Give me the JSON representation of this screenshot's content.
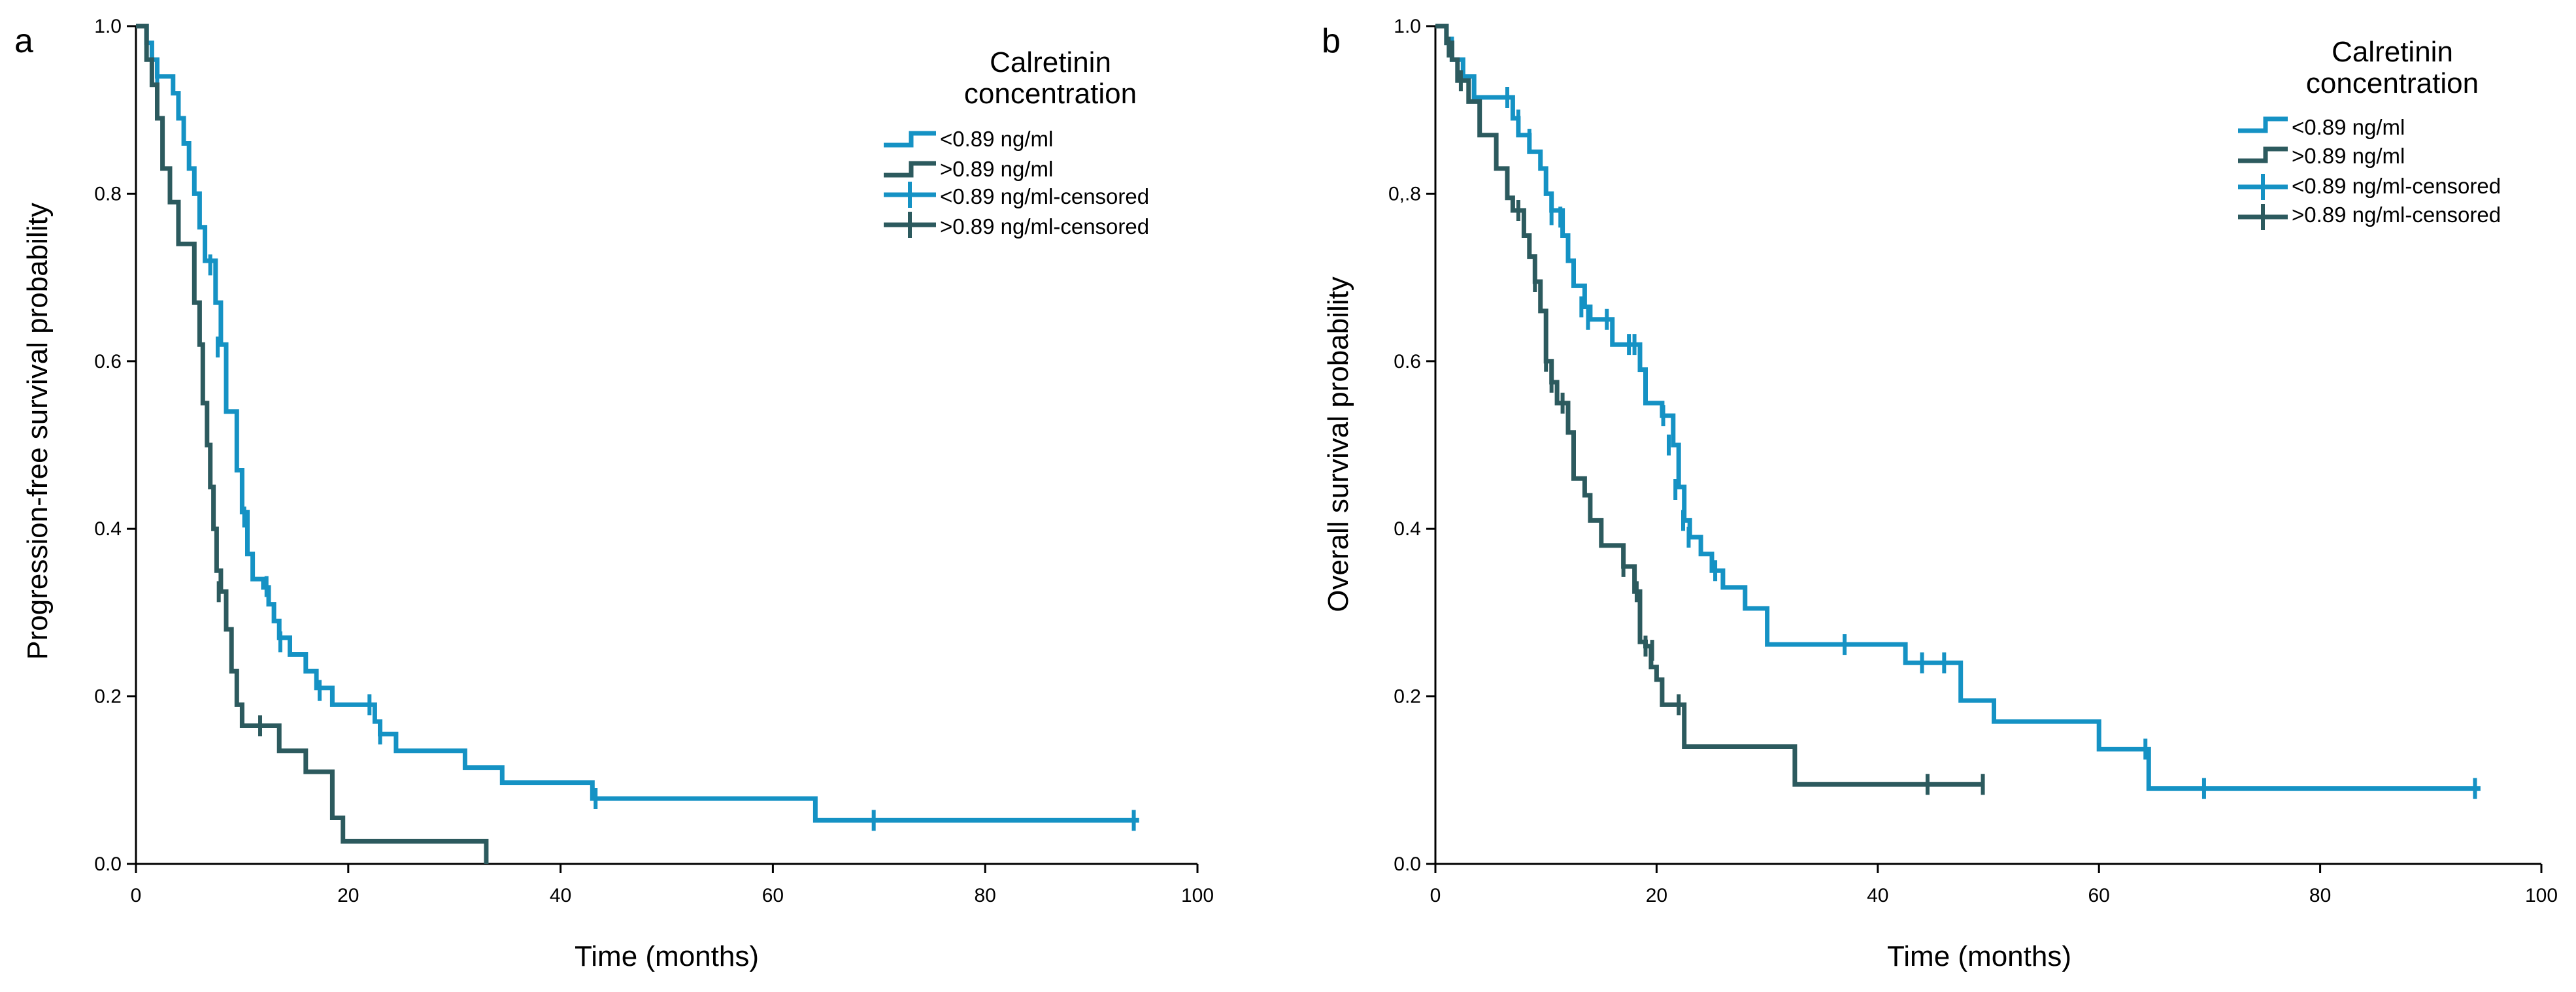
{
  "colors": {
    "low": "#1592c4",
    "high": "#2c5a5e"
  },
  "chart_data": [
    {
      "type": "line",
      "panel_label": "a",
      "xlabel": "Time (months)",
      "ylabel": "Progression-free survival probability",
      "xlim": [
        0,
        100
      ],
      "ylim": [
        0,
        1
      ],
      "xticks": [
        "0",
        "20",
        "40",
        "60",
        "80",
        "100"
      ],
      "yticks": [
        "0.0",
        "0.2",
        "0.4",
        "0.6",
        "0.8",
        "1.0"
      ],
      "legend": {
        "title_line1": "Calretinin",
        "title_line2": "concentration",
        "entries": [
          "<0.89 ng/ml",
          ">0.89 ng/ml",
          "<0.89 ng/ml-censored",
          ">0.89 ng/ml-censored"
        ],
        "position": "top-right"
      },
      "series": [
        {
          "name": "<0.89 ng/ml",
          "steps": [
            [
              0,
              1.0
            ],
            [
              1.0,
              0.98
            ],
            [
              1.5,
              0.96
            ],
            [
              2.0,
              0.94
            ],
            [
              3.5,
              0.92
            ],
            [
              4.0,
              0.89
            ],
            [
              4.5,
              0.86
            ],
            [
              5.0,
              0.83
            ],
            [
              5.5,
              0.8
            ],
            [
              6.0,
              0.76
            ],
            [
              6.5,
              0.72
            ],
            [
              7.5,
              0.67
            ],
            [
              8.0,
              0.62
            ],
            [
              8.5,
              0.54
            ],
            [
              9.5,
              0.47
            ],
            [
              10.0,
              0.42
            ],
            [
              10.5,
              0.37
            ],
            [
              11.0,
              0.34
            ],
            [
              12.0,
              0.33
            ],
            [
              12.5,
              0.31
            ],
            [
              13.0,
              0.29
            ],
            [
              13.5,
              0.27
            ],
            [
              14.5,
              0.25
            ],
            [
              16.0,
              0.23
            ],
            [
              17.0,
              0.21
            ],
            [
              18.5,
              0.19
            ],
            [
              22.5,
              0.17
            ],
            [
              23.0,
              0.155
            ],
            [
              24.5,
              0.135
            ],
            [
              31.0,
              0.115
            ],
            [
              34.5,
              0.097
            ],
            [
              43.0,
              0.078
            ],
            [
              64.0,
              0.052
            ],
            [
              94.5,
              0.052
            ]
          ],
          "censored": [
            [
              2,
              0.94
            ],
            [
              7,
              0.715
            ],
            [
              7.7,
              0.617
            ],
            [
              10.2,
              0.414
            ],
            [
              12.3,
              0.331
            ],
            [
              13.6,
              0.265
            ],
            [
              17.3,
              0.207
            ],
            [
              22.0,
              0.19
            ],
            [
              23.0,
              0.155
            ],
            [
              43.3,
              0.078
            ],
            [
              69.5,
              0.052
            ],
            [
              94.0,
              0.052
            ]
          ]
        },
        {
          "name": ">0.89 ng/ml",
          "steps": [
            [
              0,
              1.0
            ],
            [
              1.0,
              0.96
            ],
            [
              1.5,
              0.93
            ],
            [
              2.0,
              0.89
            ],
            [
              2.5,
              0.83
            ],
            [
              3.2,
              0.79
            ],
            [
              4.0,
              0.74
            ],
            [
              5.5,
              0.67
            ],
            [
              6.0,
              0.62
            ],
            [
              6.3,
              0.55
            ],
            [
              6.7,
              0.5
            ],
            [
              7.0,
              0.45
            ],
            [
              7.3,
              0.4
            ],
            [
              7.6,
              0.35
            ],
            [
              8.0,
              0.325
            ],
            [
              8.5,
              0.28
            ],
            [
              9.0,
              0.23
            ],
            [
              9.5,
              0.19
            ],
            [
              10.0,
              0.165
            ],
            [
              13.5,
              0.135
            ],
            [
              16.0,
              0.11
            ],
            [
              18.5,
              0.055
            ],
            [
              19.5,
              0.027
            ],
            [
              33.0,
              0.027
            ],
            [
              33.0,
              0.0
            ]
          ],
          "censored": [
            [
              7.8,
              0.325
            ],
            [
              11.7,
              0.165
            ]
          ]
        }
      ]
    },
    {
      "type": "line",
      "panel_label": "b",
      "xlabel": "Time (months)",
      "ylabel": "Overall survival probability",
      "xlim": [
        0,
        100
      ],
      "ylim": [
        0,
        1
      ],
      "xticks": [
        "0",
        "20",
        "40",
        "60",
        "80",
        "100"
      ],
      "yticks": [
        "0.0",
        "0.2",
        "0.4",
        "0.6",
        "0,.8",
        "1.0"
      ],
      "legend": {
        "title_line1": "Calretinin",
        "title_line2": "concentration",
        "entries": [
          "<0.89 ng/ml",
          ">0.89 ng/ml",
          "<0.89 ng/ml-censored",
          ">0.89 ng/ml-censored"
        ],
        "position": "top-right"
      },
      "series": [
        {
          "name": "<0.89 ng/ml",
          "steps": [
            [
              0,
              1.0
            ],
            [
              1.0,
              0.98
            ],
            [
              1.5,
              0.96
            ],
            [
              2.5,
              0.94
            ],
            [
              3.5,
              0.915
            ],
            [
              7.0,
              0.89
            ],
            [
              7.5,
              0.87
            ],
            [
              8.5,
              0.85
            ],
            [
              9.5,
              0.83
            ],
            [
              10.0,
              0.8
            ],
            [
              10.5,
              0.78
            ],
            [
              11.5,
              0.75
            ],
            [
              12.0,
              0.72
            ],
            [
              12.5,
              0.69
            ],
            [
              13.5,
              0.665
            ],
            [
              14.0,
              0.65
            ],
            [
              16.0,
              0.62
            ],
            [
              18.5,
              0.59
            ],
            [
              19.0,
              0.55
            ],
            [
              20.5,
              0.535
            ],
            [
              21.5,
              0.5
            ],
            [
              22.0,
              0.45
            ],
            [
              22.5,
              0.41
            ],
            [
              23.0,
              0.39
            ],
            [
              24.0,
              0.37
            ],
            [
              25.0,
              0.35
            ],
            [
              26.0,
              0.33
            ],
            [
              28.0,
              0.305
            ],
            [
              30.0,
              0.262
            ],
            [
              42.5,
              0.24
            ],
            [
              47.5,
              0.195
            ],
            [
              50.5,
              0.17
            ],
            [
              60.0,
              0.137
            ],
            [
              64.5,
              0.09
            ],
            [
              94.5,
              0.09
            ]
          ],
          "censored": [
            [
              1.5,
              0.975
            ],
            [
              6.5,
              0.915
            ],
            [
              7.5,
              0.888
            ],
            [
              8.5,
              0.865
            ],
            [
              9.5,
              0.84
            ],
            [
              10.5,
              0.775
            ],
            [
              11.3,
              0.772
            ],
            [
              13.2,
              0.665
            ],
            [
              13.8,
              0.65
            ],
            [
              15.5,
              0.65
            ],
            [
              17.5,
              0.62
            ],
            [
              18.0,
              0.62
            ],
            [
              20.6,
              0.535
            ],
            [
              21.1,
              0.5
            ],
            [
              21.7,
              0.447
            ],
            [
              22.4,
              0.41
            ],
            [
              22.9,
              0.39
            ],
            [
              25.3,
              0.35
            ],
            [
              37.0,
              0.262
            ],
            [
              44.0,
              0.24
            ],
            [
              46.0,
              0.24
            ],
            [
              64.2,
              0.137
            ],
            [
              69.5,
              0.09
            ],
            [
              94.0,
              0.09
            ]
          ]
        },
        {
          "name": ">0.89 ng/ml",
          "steps": [
            [
              0,
              1.0
            ],
            [
              1.0,
              0.98
            ],
            [
              1.5,
              0.96
            ],
            [
              2.0,
              0.935
            ],
            [
              3.0,
              0.91
            ],
            [
              4.0,
              0.87
            ],
            [
              5.5,
              0.83
            ],
            [
              6.5,
              0.795
            ],
            [
              7.0,
              0.78
            ],
            [
              8.0,
              0.75
            ],
            [
              8.5,
              0.725
            ],
            [
              9.0,
              0.695
            ],
            [
              9.5,
              0.66
            ],
            [
              10.0,
              0.6
            ],
            [
              10.5,
              0.575
            ],
            [
              11.0,
              0.55
            ],
            [
              12.0,
              0.515
            ],
            [
              12.5,
              0.46
            ],
            [
              13.5,
              0.44
            ],
            [
              14.0,
              0.41
            ],
            [
              15.0,
              0.38
            ],
            [
              17.0,
              0.355
            ],
            [
              18.0,
              0.325
            ],
            [
              18.5,
              0.265
            ],
            [
              19.0,
              0.26
            ],
            [
              19.5,
              0.235
            ],
            [
              20.0,
              0.22
            ],
            [
              20.5,
              0.19
            ],
            [
              22.5,
              0.14
            ],
            [
              32.5,
              0.095
            ],
            [
              49.5,
              0.095
            ]
          ],
          "censored": [
            [
              1.2,
              0.975
            ],
            [
              2.3,
              0.935
            ],
            [
              7.5,
              0.78
            ],
            [
              8.0,
              0.765
            ],
            [
              9.0,
              0.695
            ],
            [
              10.0,
              0.6
            ],
            [
              10.5,
              0.575
            ],
            [
              11.5,
              0.55
            ],
            [
              17.0,
              0.355
            ],
            [
              18.2,
              0.325
            ],
            [
              19.0,
              0.26
            ],
            [
              19.6,
              0.255
            ],
            [
              22.0,
              0.19
            ],
            [
              44.5,
              0.095
            ],
            [
              49.5,
              0.095
            ]
          ]
        }
      ]
    }
  ]
}
